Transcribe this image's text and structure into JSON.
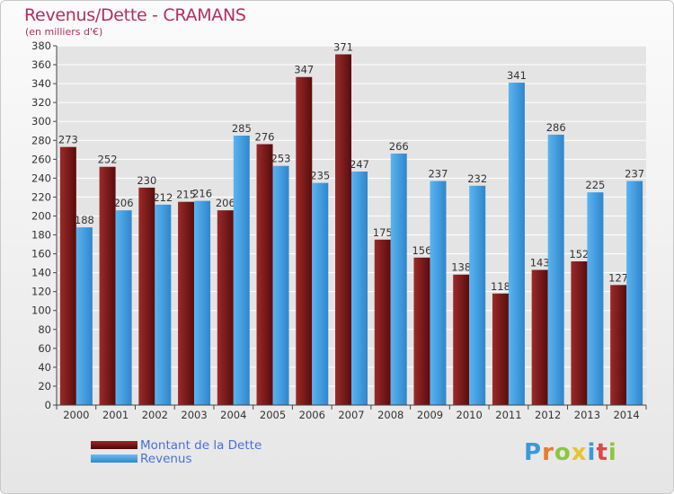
{
  "title": "Revenus/Dette - CRAMANS",
  "subtitle": "(en milliers d'€)",
  "logo": {
    "letters": [
      "P",
      "r",
      "o",
      "x",
      "i",
      "t",
      "i"
    ],
    "colors": [
      "#3a9ad9",
      "#e87a2e",
      "#8cc63f",
      "#e8c52e",
      "#3a9ad9",
      "#d94a4a",
      "#8cc63f"
    ]
  },
  "colors": {
    "debt": "#7b1616",
    "revenue": "#3e9de0",
    "axis": "#444444",
    "grid": "#ffffff",
    "title": "#b03060"
  },
  "chart_data": {
    "type": "bar",
    "title": "Revenus/Dette - CRAMANS",
    "subtitle": "(en milliers d'€)",
    "categories": [
      "2000",
      "2001",
      "2002",
      "2003",
      "2004",
      "2005",
      "2006",
      "2007",
      "2008",
      "2009",
      "2010",
      "2011",
      "2012",
      "2013",
      "2014"
    ],
    "series": [
      {
        "name": "Montant de la Dette",
        "values": [
          273,
          252,
          230,
          215,
          206,
          276,
          347,
          371,
          175,
          156,
          138,
          118,
          143,
          152,
          127
        ]
      },
      {
        "name": "Revenus",
        "values": [
          188,
          206,
          212,
          216,
          285,
          253,
          235,
          247,
          266,
          237,
          232,
          341,
          286,
          225,
          237
        ]
      }
    ],
    "ylim": [
      0,
      380
    ],
    "yticks": [
      0,
      20,
      40,
      60,
      80,
      100,
      120,
      140,
      160,
      180,
      200,
      220,
      240,
      260,
      280,
      300,
      320,
      340,
      360,
      380
    ],
    "grid": true,
    "legend_position": "bottom-left"
  }
}
